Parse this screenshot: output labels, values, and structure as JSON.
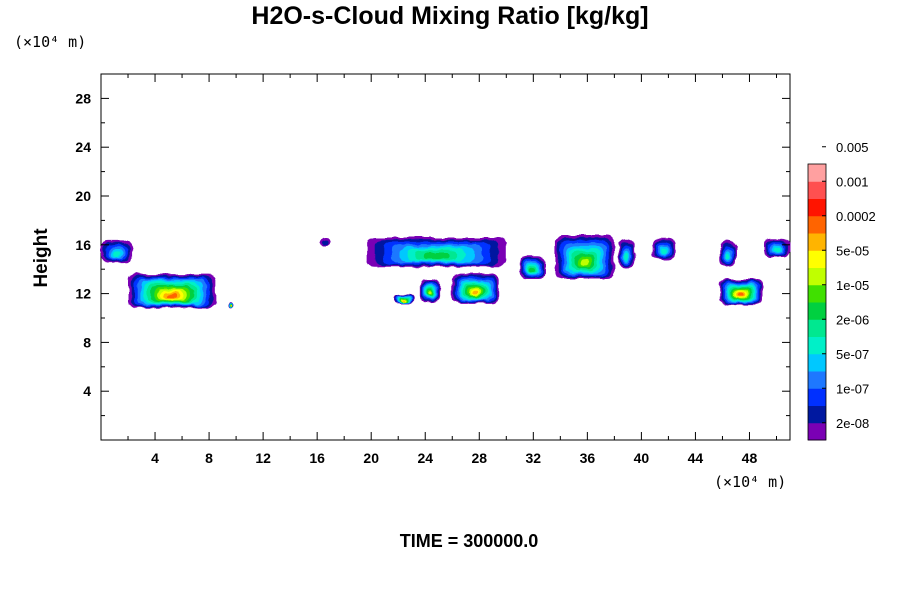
{
  "title": "H2O-s-Cloud Mixing Ratio [kg/kg]",
  "y_unit": "(×10⁴ m)",
  "x_unit": "(×10⁴ m)",
  "ylabel": "Height",
  "time_label": "TIME = 300000.0",
  "chart_data": {
    "type": "heatmap",
    "title": "H2O-s-Cloud Mixing Ratio [kg/kg]",
    "ylabel": "Height",
    "xlim": [
      0,
      51
    ],
    "ylim": [
      0,
      30
    ],
    "x_ticks": [
      4,
      8,
      12,
      16,
      20,
      24,
      28,
      32,
      36,
      40,
      44,
      48
    ],
    "y_ticks": [
      4,
      8,
      12,
      16,
      20,
      24,
      28
    ],
    "grid": false,
    "legend_position": "right",
    "colorbar": {
      "levels": [
        "2e-08",
        "1e-07",
        "5e-07",
        "2e-06",
        "1e-05",
        "5e-05",
        "0.0002",
        "0.001",
        "0.005"
      ],
      "colors": [
        "#7a00b4",
        "#0018a0",
        "#0030ff",
        "#1e78ff",
        "#00c8ff",
        "#00f0c8",
        "#00e890",
        "#00d040",
        "#40e000",
        "#c0ff00",
        "#ffff00",
        "#ffb400",
        "#ff6400",
        "#ff1400",
        "#ff5050",
        "#ffa0a0"
      ]
    },
    "features": [
      {
        "x": [
          0,
          2.3
        ],
        "y": [
          14.5,
          16.4
        ],
        "max_level": "5e-07"
      },
      {
        "x": [
          2,
          8.5
        ],
        "y": [
          10.8,
          13.6
        ],
        "max_level": "0.0002"
      },
      {
        "x": [
          9.4,
          9.8
        ],
        "y": [
          10.8,
          11.3
        ],
        "max_level": "5e-05"
      },
      {
        "x": [
          16.2,
          17
        ],
        "y": [
          15.9,
          16.6
        ],
        "max_level": "2e-08"
      },
      {
        "x": [
          19.7,
          30
        ],
        "y": [
          14.2,
          16.6
        ],
        "max_level": "2e-06"
      },
      {
        "x": [
          21.7,
          23.2
        ],
        "y": [
          11.2,
          11.9
        ],
        "max_level": "5e-05"
      },
      {
        "x": [
          23.6,
          25.1
        ],
        "y": [
          11.3,
          13.2
        ],
        "max_level": "1e-05"
      },
      {
        "x": [
          26,
          29.4
        ],
        "y": [
          11.2,
          13.6
        ],
        "max_level": "5e-05"
      },
      {
        "x": [
          31,
          32.9
        ],
        "y": [
          13.2,
          15.1
        ],
        "max_level": "2e-06"
      },
      {
        "x": [
          33.6,
          38
        ],
        "y": [
          13.2,
          16.8
        ],
        "max_level": "1e-05"
      },
      {
        "x": [
          38.3,
          39.5
        ],
        "y": [
          14.1,
          16.5
        ],
        "max_level": "5e-07"
      },
      {
        "x": [
          40.8,
          42.5
        ],
        "y": [
          14.8,
          16.5
        ],
        "max_level": "5e-07"
      },
      {
        "x": [
          45.8,
          47
        ],
        "y": [
          14.2,
          16.3
        ],
        "max_level": "5e-07"
      },
      {
        "x": [
          45.8,
          49
        ],
        "y": [
          11.1,
          13.2
        ],
        "max_level": "0.0002"
      },
      {
        "x": [
          49,
          51
        ],
        "y": [
          15,
          16.5
        ],
        "max_level": "5e-07"
      }
    ]
  }
}
